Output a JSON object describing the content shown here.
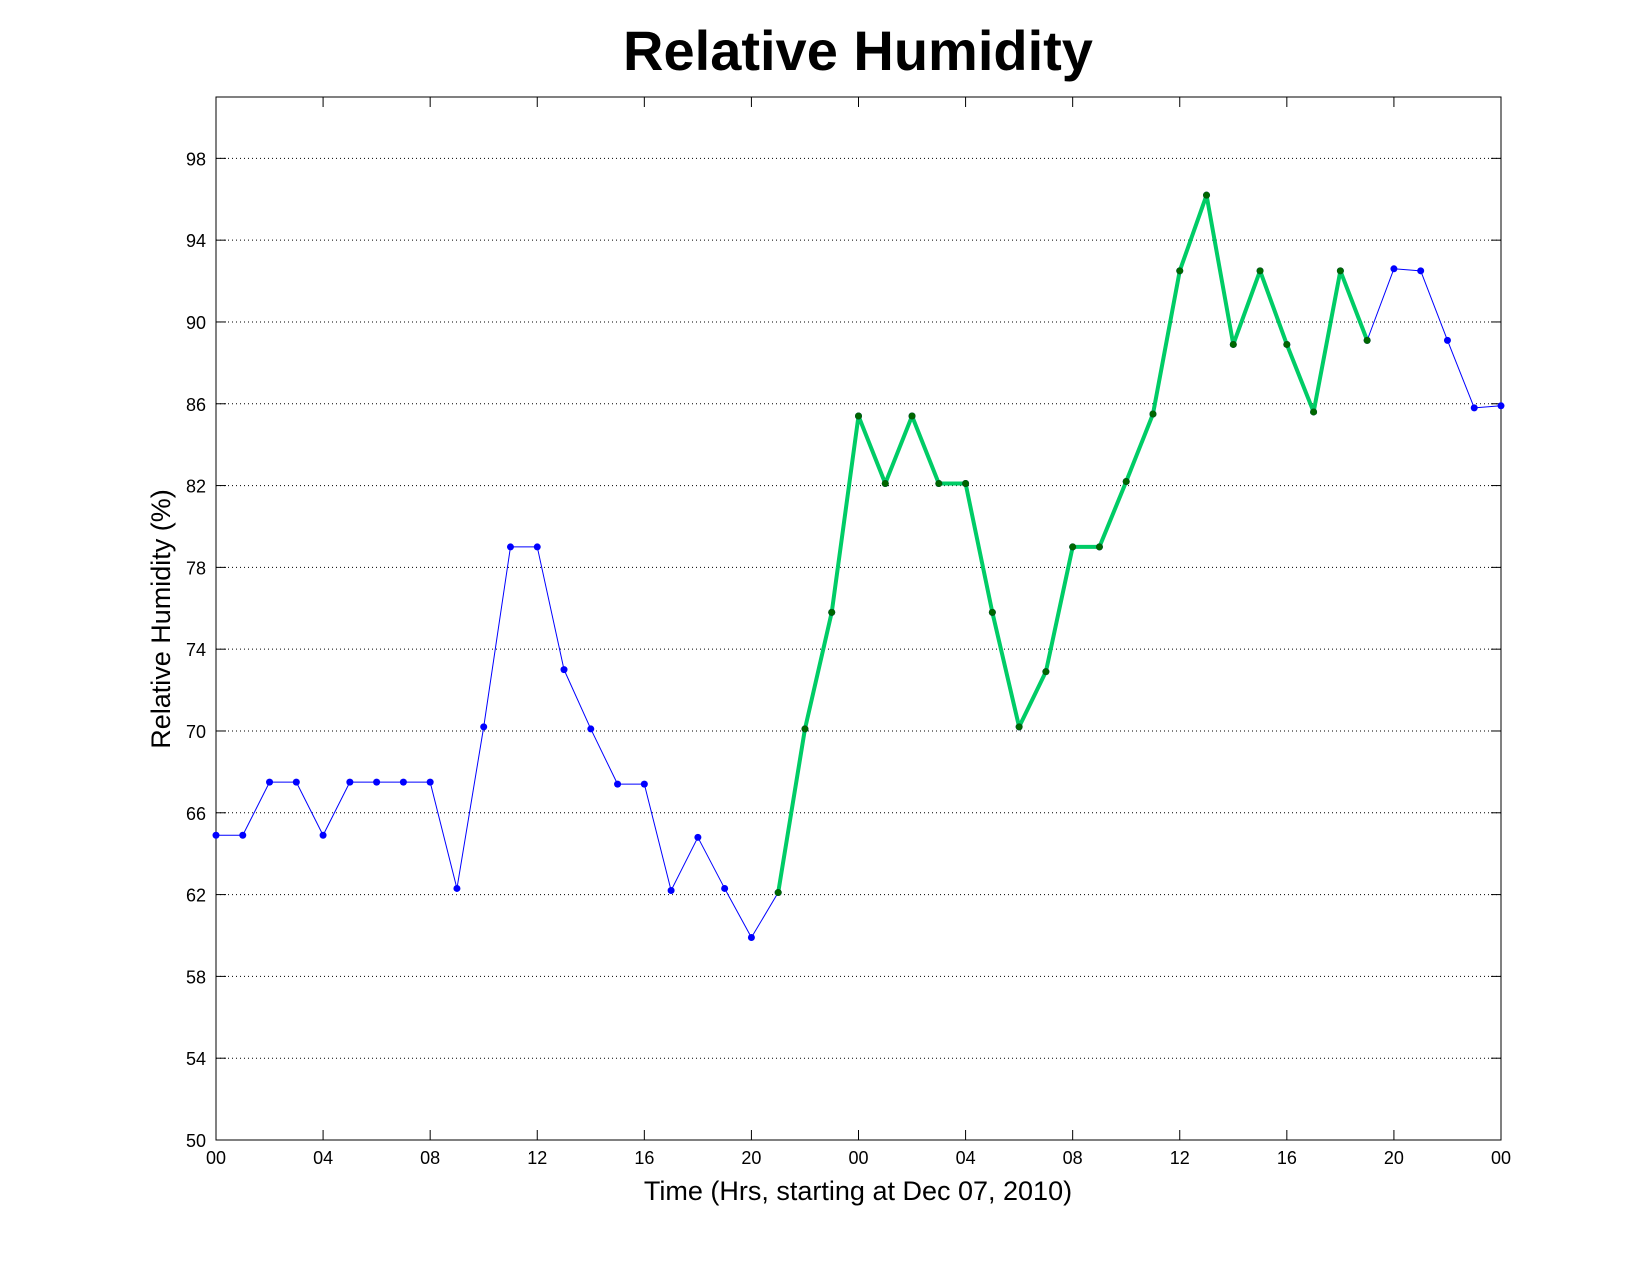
{
  "chart_data": {
    "type": "line",
    "title": "Relative Humidity",
    "xlabel": "Time (Hrs, starting at Dec 07, 2010)",
    "ylabel": "Relative Humidity (%)",
    "x": [
      0,
      1,
      2,
      3,
      4,
      5,
      6,
      7,
      8,
      9,
      10,
      11,
      12,
      13,
      14,
      15,
      16,
      17,
      18,
      19,
      20,
      21,
      22,
      23,
      24,
      25,
      26,
      27,
      28,
      29,
      30,
      31,
      32,
      33,
      34,
      35,
      36,
      37,
      38,
      39,
      40,
      41,
      42,
      43,
      44,
      45,
      46,
      47,
      48
    ],
    "series": [
      {
        "color": "#0000ff",
        "marker_color": "#0000ff",
        "line_width": 1,
        "values": [
          64.9,
          64.9,
          67.5,
          67.5,
          64.9,
          67.5,
          67.5,
          67.5,
          67.5,
          62.3,
          70.2,
          79.0,
          79.0,
          73.0,
          70.1,
          67.4,
          67.4,
          62.2,
          64.8,
          62.3,
          59.9,
          62.1,
          70.1,
          75.8,
          85.4,
          82.1,
          85.4,
          82.1,
          82.1,
          75.8,
          70.2,
          72.9,
          79.0,
          79.0,
          82.2,
          85.5,
          92.5,
          96.2,
          88.9,
          92.5,
          88.9,
          85.6,
          92.5,
          89.1,
          92.6,
          92.5,
          89.1,
          85.8,
          85.9
        ]
      },
      {
        "color": "#00cc66",
        "marker_color": "#006600",
        "line_width": 4,
        "values": [
          null,
          null,
          null,
          null,
          null,
          null,
          null,
          null,
          null,
          null,
          null,
          null,
          null,
          null,
          null,
          null,
          null,
          null,
          null,
          null,
          null,
          62.1,
          70.1,
          75.8,
          85.4,
          82.1,
          85.4,
          82.1,
          82.1,
          75.8,
          70.2,
          72.9,
          79.0,
          79.0,
          82.2,
          85.5,
          92.5,
          96.2,
          88.9,
          92.5,
          88.9,
          85.6,
          92.5,
          89.1,
          null,
          null,
          null,
          null,
          null
        ]
      }
    ],
    "xlim": [
      0,
      48
    ],
    "xticks": [
      {
        "value": 0,
        "label": "00"
      },
      {
        "value": 4,
        "label": "04"
      },
      {
        "value": 8,
        "label": "08"
      },
      12,
      16,
      20,
      {
        "value": 24,
        "label": "00"
      },
      {
        "value": 28,
        "label": "04"
      },
      {
        "value": 32,
        "label": "08"
      },
      {
        "value": 36,
        "label": "12"
      },
      {
        "value": 40,
        "label": "16"
      },
      {
        "value": 44,
        "label": "20"
      },
      {
        "value": 48,
        "label": "00"
      }
    ],
    "ylim": [
      50,
      101
    ],
    "yticks": [
      50,
      54,
      58,
      62,
      66,
      70,
      74,
      78,
      82,
      86,
      90,
      94,
      98
    ],
    "grid": true
  }
}
